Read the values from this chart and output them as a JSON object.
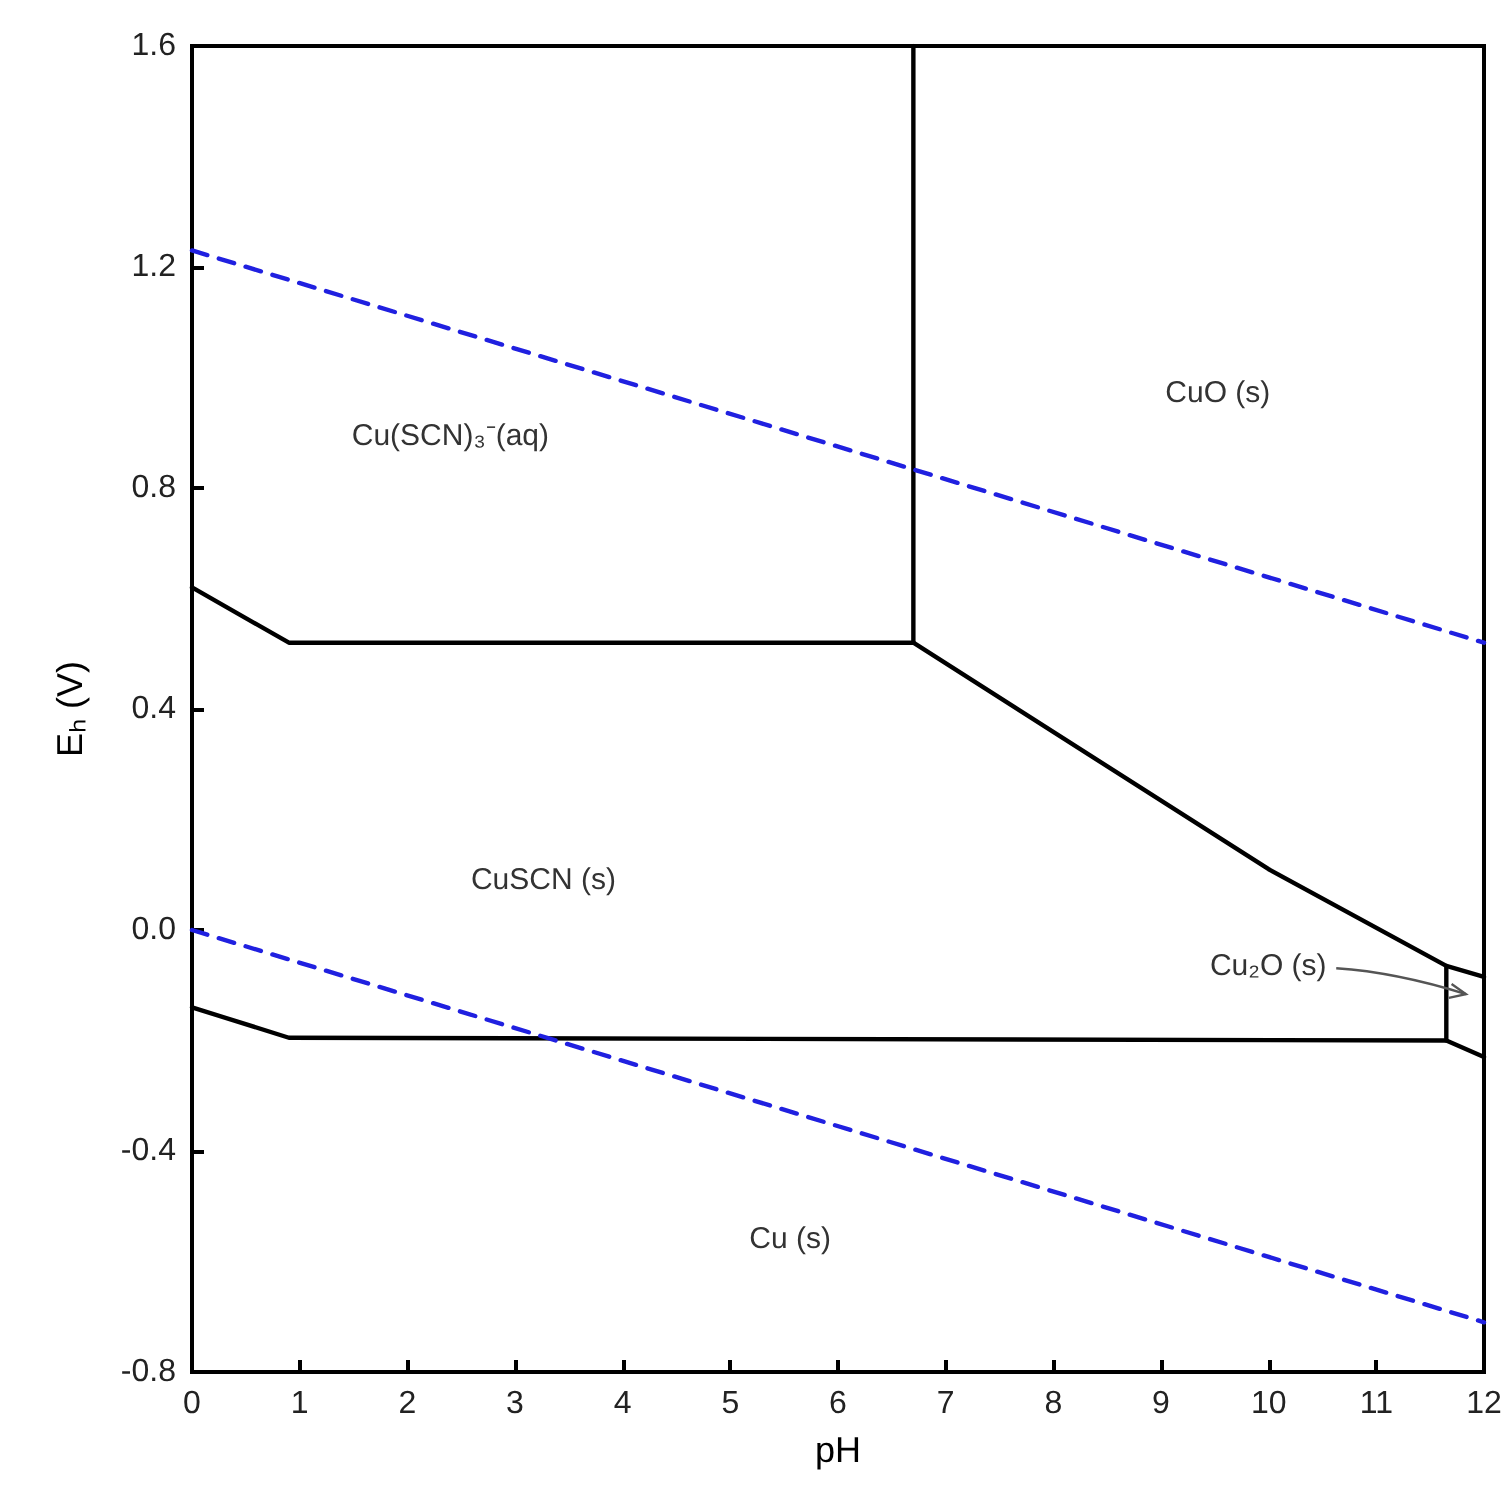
{
  "chart_data": {
    "type": "line",
    "xlabel": "pH",
    "ylabel": "Eₕ (V)",
    "xlim": [
      0,
      12
    ],
    "xticks": [
      0,
      1,
      2,
      3,
      4,
      5,
      6,
      7,
      8,
      9,
      10,
      11,
      12
    ],
    "ylim": [
      -0.8,
      1.6
    ],
    "yticks": [
      -0.8,
      -0.4,
      {
        "value": 0,
        "label": "0.0"
      },
      0.4,
      0.8,
      1.2,
      1.6
    ],
    "grid": false,
    "marker": "none",
    "series": [
      {
        "color": "#000000",
        "line_style": "solid",
        "x": [
          0,
          0.9,
          6.7
        ],
        "values": [
          0.62,
          0.52,
          0.52
        ]
      },
      {
        "color": "#000000",
        "line_style": "solid",
        "x": [
          6.7,
          6.7
        ],
        "values": [
          0.52,
          1.6
        ]
      },
      {
        "color": "#000000",
        "line_style": "solid",
        "x": [
          6.7,
          10,
          11.65,
          12
        ],
        "values": [
          0.52,
          0.11,
          -0.065,
          -0.085
        ]
      },
      {
        "color": "#000000",
        "line_style": "solid",
        "x": [
          11.65,
          11.65
        ],
        "values": [
          -0.065,
          -0.2
        ]
      },
      {
        "color": "#000000",
        "line_style": "solid",
        "x": [
          0,
          0.9,
          11.65,
          12
        ],
        "values": [
          -0.14,
          -0.195,
          -0.2,
          -0.23
        ]
      },
      {
        "color": "#2020e0",
        "line_style": "dashed",
        "x": [
          0,
          12
        ],
        "values": [
          1.23,
          0.52
        ]
      },
      {
        "color": "#2020e0",
        "line_style": "dashed",
        "x": [
          0,
          12
        ],
        "values": [
          0,
          -0.71
        ]
      }
    ],
    "annotations": [
      "Cu(SCN)₃⁻(aq)",
      "CuO (s)",
      "CuSCN (s)",
      "Cu (s)",
      "Cu₂O (s)"
    ]
  }
}
